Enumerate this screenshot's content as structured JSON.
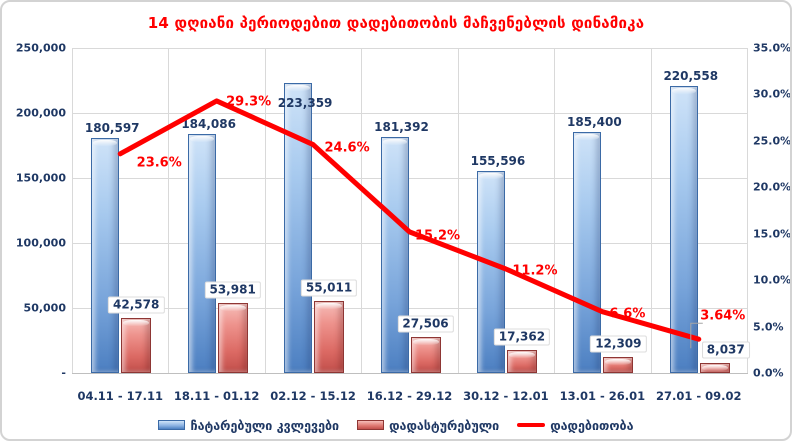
{
  "title": "14 დღიანი პერიოდებით დადებითობის მაჩვენებლის დინამიკა",
  "colors": {
    "title": "#FF0000",
    "text": "#1F3864",
    "grid": "#D9D9D9",
    "tests_bar": "#6D9AD4",
    "confirmed_bar": "#D9645E",
    "positivity_line": "#FF0000"
  },
  "chart_data": {
    "type": "bar",
    "subtype": "combo-bar-line",
    "title": "14 დღიანი პერიოდებით დადებითობის მაჩვენებლის დინამიკა",
    "categories": [
      "04.11 - 17.11",
      "18.11 - 01.12",
      "02.12 - 15.12",
      "16.12 - 29.12",
      "30.12 - 12.01",
      "13.01 - 26.01",
      "27.01 - 09.02"
    ],
    "series": [
      {
        "name": "ჩატარებული კვლევები",
        "type": "bar",
        "axis": "left",
        "values": [
          180597,
          184086,
          223359,
          181392,
          155596,
          185400,
          220558
        ],
        "labels": [
          "180,597",
          "184,086",
          "223,359",
          "181,392",
          "155,596",
          "185,400",
          "220,558"
        ]
      },
      {
        "name": "დადასტურებული",
        "type": "bar",
        "axis": "left",
        "values": [
          42578,
          53981,
          55011,
          27506,
          17362,
          12309,
          8037
        ],
        "labels": [
          "42,578",
          "53,981",
          "55,011",
          "27,506",
          "17,362",
          "12,309",
          "8,037"
        ]
      },
      {
        "name": "დადებითობა",
        "type": "line",
        "axis": "right",
        "values": [
          23.6,
          29.3,
          24.6,
          15.2,
          11.2,
          6.6,
          3.64
        ],
        "labels": [
          "23.6%",
          "29.3%",
          "24.6%",
          "15.2%",
          "11.2%",
          "6.6%",
          "3.64%"
        ]
      }
    ],
    "left_axis": {
      "min": 0,
      "max": 250000,
      "ticks": [
        "250,000",
        "200,000",
        "150,000",
        "100,000",
        "50,000",
        "-"
      ]
    },
    "right_axis": {
      "min": 0,
      "max": 35,
      "ticks": [
        "35.0%",
        "30.0%",
        "25.0%",
        "20.0%",
        "15.0%",
        "10.0%",
        "5.0%",
        "0.0%"
      ]
    },
    "grid": true,
    "legend_position": "bottom"
  }
}
